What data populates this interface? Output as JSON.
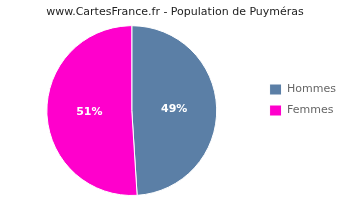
{
  "chart_data": {
    "type": "pie",
    "title": "www.CartesFrance.fr - Population de Puyméras",
    "categories": [
      "Hommes",
      "Femmes"
    ],
    "values": [
      49,
      51
    ],
    "value_labels": [
      "49%",
      "51%"
    ],
    "colors": [
      "#5b7fa6",
      "#ff00cc"
    ],
    "data_labels": true,
    "legend": "right"
  }
}
